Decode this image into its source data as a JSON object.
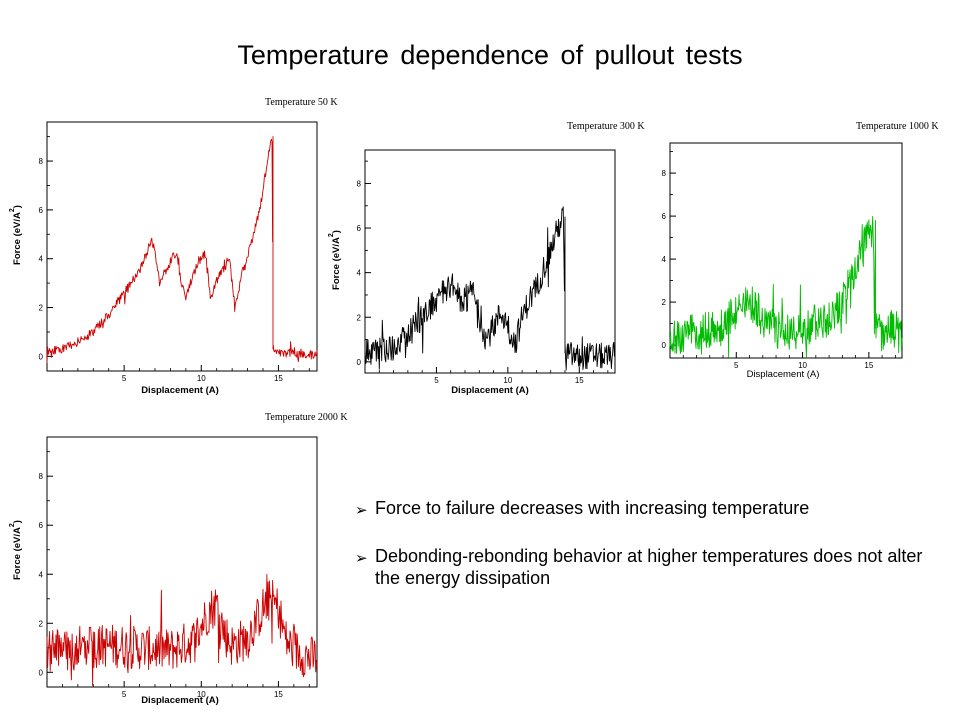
{
  "slide": {
    "title": "Temperature dependence of pullout tests",
    "bullet_marker": "➢",
    "bullets": [
      "Force to failure decreases with increasing temperature",
      "Debonding-rebonding behavior at higher temperatures does not alter the energy dissipation"
    ]
  },
  "chart_data": [
    {
      "type": "line",
      "title": "Temperature 50 K",
      "xlabel": "Displacement (A)",
      "ylabel": "Force (eV/A^2)",
      "ylabel_main": "Force (eV/A",
      "ylabel_sup": "2",
      "ylabel_close": ")",
      "xlim": [
        0,
        17.5
      ],
      "ylim": [
        -0.6,
        9.6
      ],
      "x_ticks": [
        5,
        10,
        15
      ],
      "y_ticks": [
        0,
        2,
        4,
        6,
        8
      ],
      "grid": false,
      "color": "#cc0000",
      "noise": 0.18,
      "x": [
        0,
        1,
        2,
        3,
        4,
        5,
        6,
        6.8,
        7.0,
        7.3,
        8,
        8.4,
        8.7,
        9,
        9.8,
        10.3,
        10.6,
        11,
        11.8,
        12.2,
        12.6,
        13.2,
        13.8,
        14.4,
        14.6,
        14.65,
        15,
        15.5,
        16,
        16.5,
        17.5
      ],
      "y": [
        0.2,
        0.3,
        0.6,
        1.0,
        1.7,
        2.6,
        3.5,
        4.8,
        4.2,
        3.0,
        3.9,
        4.3,
        3.0,
        2.5,
        3.9,
        4.2,
        2.3,
        3.1,
        4.0,
        2.0,
        3.3,
        4.6,
        6.0,
        8.5,
        9.0,
        0.3,
        0.2,
        0.1,
        0.2,
        0.0,
        0.1
      ]
    },
    {
      "type": "line",
      "title": "Temperature 300 K",
      "xlabel": "Displacement (A)",
      "ylabel": "Force (eV/A^2)",
      "ylabel_main": "Force (eV/A",
      "ylabel_sup": "2",
      "ylabel_close": ")",
      "xlim": [
        0,
        17.5
      ],
      "ylim": [
        -0.5,
        9.5
      ],
      "x_ticks": [
        5,
        10,
        15
      ],
      "y_ticks": [
        0,
        2,
        4,
        6,
        8
      ],
      "grid": false,
      "color": "#000000",
      "noise": 0.6,
      "x": [
        0,
        2,
        3,
        4,
        5,
        6,
        7,
        7.5,
        8,
        8.5,
        9,
        9.5,
        10,
        10.5,
        11,
        11.5,
        12,
        12.5,
        13,
        13.5,
        13.9,
        14.0,
        14.5,
        15,
        16,
        17,
        17.5
      ],
      "y": [
        0.4,
        0.6,
        1.2,
        2.0,
        2.8,
        3.5,
        2.5,
        3.3,
        2.0,
        1.0,
        1.6,
        2.2,
        1.7,
        0.8,
        2.0,
        2.8,
        3.3,
        4.2,
        5.0,
        6.0,
        6.5,
        0.4,
        0.3,
        0.2,
        0.3,
        0.2,
        0.3
      ]
    },
    {
      "type": "line",
      "title": "Temperature 1000 K",
      "xlabel": "Displacement (A)",
      "ylabel": "",
      "xlim": [
        0,
        17.5
      ],
      "ylim": [
        -0.6,
        9.4
      ],
      "x_ticks": [
        5,
        10,
        15
      ],
      "y_ticks": [
        0,
        2,
        4,
        6,
        8
      ],
      "grid": false,
      "color": "#00bb00",
      "noise": 0.9,
      "x": [
        0,
        2,
        4,
        5,
        6,
        7,
        8,
        9,
        10,
        11,
        12,
        13,
        14,
        14.8,
        15.3,
        15.5,
        16,
        17,
        17.5
      ],
      "y": [
        0.4,
        0.6,
        0.8,
        1.6,
        2.0,
        1.3,
        0.7,
        0.6,
        0.8,
        1.0,
        1.3,
        2.1,
        3.5,
        4.8,
        5.8,
        0.8,
        0.6,
        0.8,
        0.6
      ]
    },
    {
      "type": "line",
      "title": "Temperature 2000 K",
      "xlabel": "Displacement (A)",
      "ylabel": "Force (eV/A^2)",
      "ylabel_main": "Force (eV/A",
      "ylabel_sup": "2",
      "ylabel_close": ")",
      "xlim": [
        0,
        17.5
      ],
      "ylim": [
        -0.6,
        9.6
      ],
      "x_ticks": [
        5,
        10,
        15
      ],
      "y_ticks": [
        0,
        2,
        4,
        6,
        8
      ],
      "grid": false,
      "color": "#cc0000",
      "noise": 0.9,
      "x": [
        0,
        2,
        4,
        6,
        8,
        9.5,
        10.5,
        11.0,
        11.5,
        12,
        13,
        14.0,
        14.5,
        15.0,
        15.5,
        16,
        17,
        17.5
      ],
      "y": [
        0.9,
        1.0,
        1.1,
        1.0,
        0.9,
        1.3,
        2.5,
        2.8,
        1.6,
        1.1,
        1.4,
        2.6,
        3.0,
        2.6,
        1.3,
        0.9,
        0.6,
        0.6
      ]
    }
  ]
}
